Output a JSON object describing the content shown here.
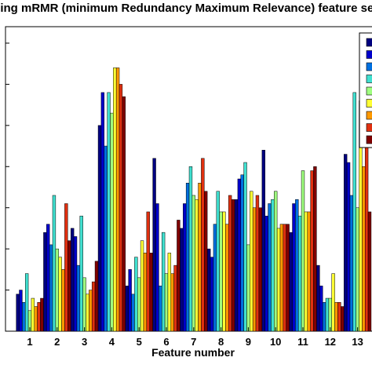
{
  "chart_data": {
    "type": "bar",
    "title": "sing mRMR (minimum Redundancy Maximum Relevance) feature sel",
    "xlabel": "Feature number",
    "ylabel": "",
    "categories": [
      "1",
      "2",
      "3",
      "4",
      "5",
      "6",
      "7",
      "8",
      "9",
      "10",
      "11",
      "12",
      "13"
    ],
    "ylim": [
      0,
      7.4
    ],
    "grid": false,
    "legend_placement": "top-right (partially cropped)",
    "series": [
      {
        "color": "#000080",
        "values": [
          0.9,
          2.4,
          2.5,
          5.0,
          1.1,
          4.2,
          2.5,
          2.0,
          3.2,
          4.4,
          2.4,
          1.6,
          4.3
        ]
      },
      {
        "color": "#0000cc",
        "values": [
          1.0,
          2.6,
          2.3,
          5.8,
          1.5,
          3.1,
          3.1,
          1.8,
          3.7,
          2.8,
          3.1,
          1.1,
          4.1
        ]
      },
      {
        "color": "#0070e0",
        "values": [
          0.7,
          2.1,
          1.6,
          4.5,
          0.9,
          1.1,
          3.6,
          2.6,
          3.8,
          3.1,
          3.2,
          0.7,
          3.3
        ]
      },
      {
        "color": "#40e0d0",
        "values": [
          1.4,
          3.3,
          2.8,
          5.8,
          1.8,
          2.4,
          4.0,
          3.4,
          4.1,
          3.2,
          2.8,
          0.8,
          5.8
        ]
      },
      {
        "color": "#a0ff80",
        "values": [
          0.5,
          2.0,
          1.3,
          5.3,
          1.3,
          1.4,
          3.3,
          2.9,
          2.1,
          3.4,
          3.9,
          0.8,
          3.0
        ]
      },
      {
        "color": "#ffff33",
        "values": [
          0.8,
          1.8,
          0.9,
          6.4,
          2.2,
          1.9,
          3.2,
          2.9,
          3.4,
          2.5,
          2.9,
          1.4,
          5.6
        ]
      },
      {
        "color": "#ff9900",
        "values": [
          0.6,
          1.5,
          1.0,
          6.4,
          1.9,
          1.4,
          3.6,
          2.6,
          3.0,
          2.6,
          2.9,
          0.7,
          4.0
        ]
      },
      {
        "color": "#e03010",
        "values": [
          0.7,
          3.1,
          1.2,
          6.0,
          2.9,
          1.6,
          4.2,
          3.3,
          3.3,
          2.6,
          3.9,
          0.7,
          5.5
        ]
      },
      {
        "color": "#800000",
        "values": [
          0.8,
          2.2,
          1.7,
          5.7,
          1.9,
          2.7,
          3.4,
          3.2,
          3.0,
          2.6,
          4.0,
          0.6,
          2.9
        ]
      }
    ]
  }
}
